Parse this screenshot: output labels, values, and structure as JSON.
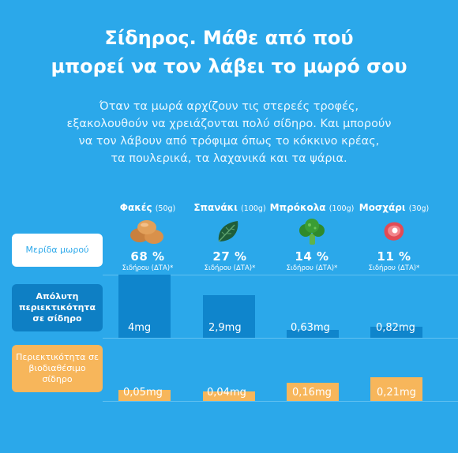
{
  "title_line1": "Σίδηρος. Μάθε από πού",
  "title_line2": "μπορεί να τον λάβει το μωρό σου",
  "intro_lines": [
    "Όταν τα μωρά αρχίζουν τις στερεές τροφές,",
    "εξακολουθούν να χρειάζονται πολύ σίδηρο. Και μπορούν",
    "να τον λάβουν από τρόφιμα όπως το κόκκινο κρέας,",
    "τα πουλερικά, τα λαχανικά και τα ψάρια."
  ],
  "row_labels": {
    "portion": "Μερίδα μωρού",
    "absolute": "Απόλυτη περιεκτικότητα σε σίδηρο",
    "bioavailable": "Περιεκτικότητα σε βιοδιαθέσιμο σίδηρο"
  },
  "foods": [
    {
      "name": "Φακές",
      "weight": "(50g)",
      "icon": "lentils-icon",
      "percent": "68 %",
      "sub": "Σιδήρου (ΔΤΑ)*"
    },
    {
      "name": "Σπανάκι",
      "weight": "(100g)",
      "icon": "spinach-icon",
      "percent": "27 %",
      "sub": "Σιδήρου (ΔΤΑ)*"
    },
    {
      "name": "Μπρόκολα",
      "weight": "(100g)",
      "icon": "broccoli-icon",
      "percent": "14 %",
      "sub": "Σιδήρου (ΔΤΑ)*"
    },
    {
      "name": "Μοσχάρι",
      "weight": "(30g)",
      "icon": "beef-icon",
      "percent": "11 %",
      "sub": "Σιδήρου (ΔΤΑ)*"
    }
  ],
  "absolute_iron": {
    "labels": [
      "4mg",
      "2,9mg",
      "0,63mg",
      "0,82mg"
    ],
    "values": [
      4,
      2.9,
      0.63,
      0.82
    ]
  },
  "bioavailable_iron": {
    "labels": [
      "0,05mg",
      "0,04mg",
      "0,16mg",
      "0,21mg"
    ],
    "values": [
      0.05,
      0.04,
      0.16,
      0.21
    ]
  },
  "colors": {
    "background": "#2ba8ea",
    "absolute_bar": "#0f85cc",
    "bioavailable_bar": "#f7b65b"
  }
}
